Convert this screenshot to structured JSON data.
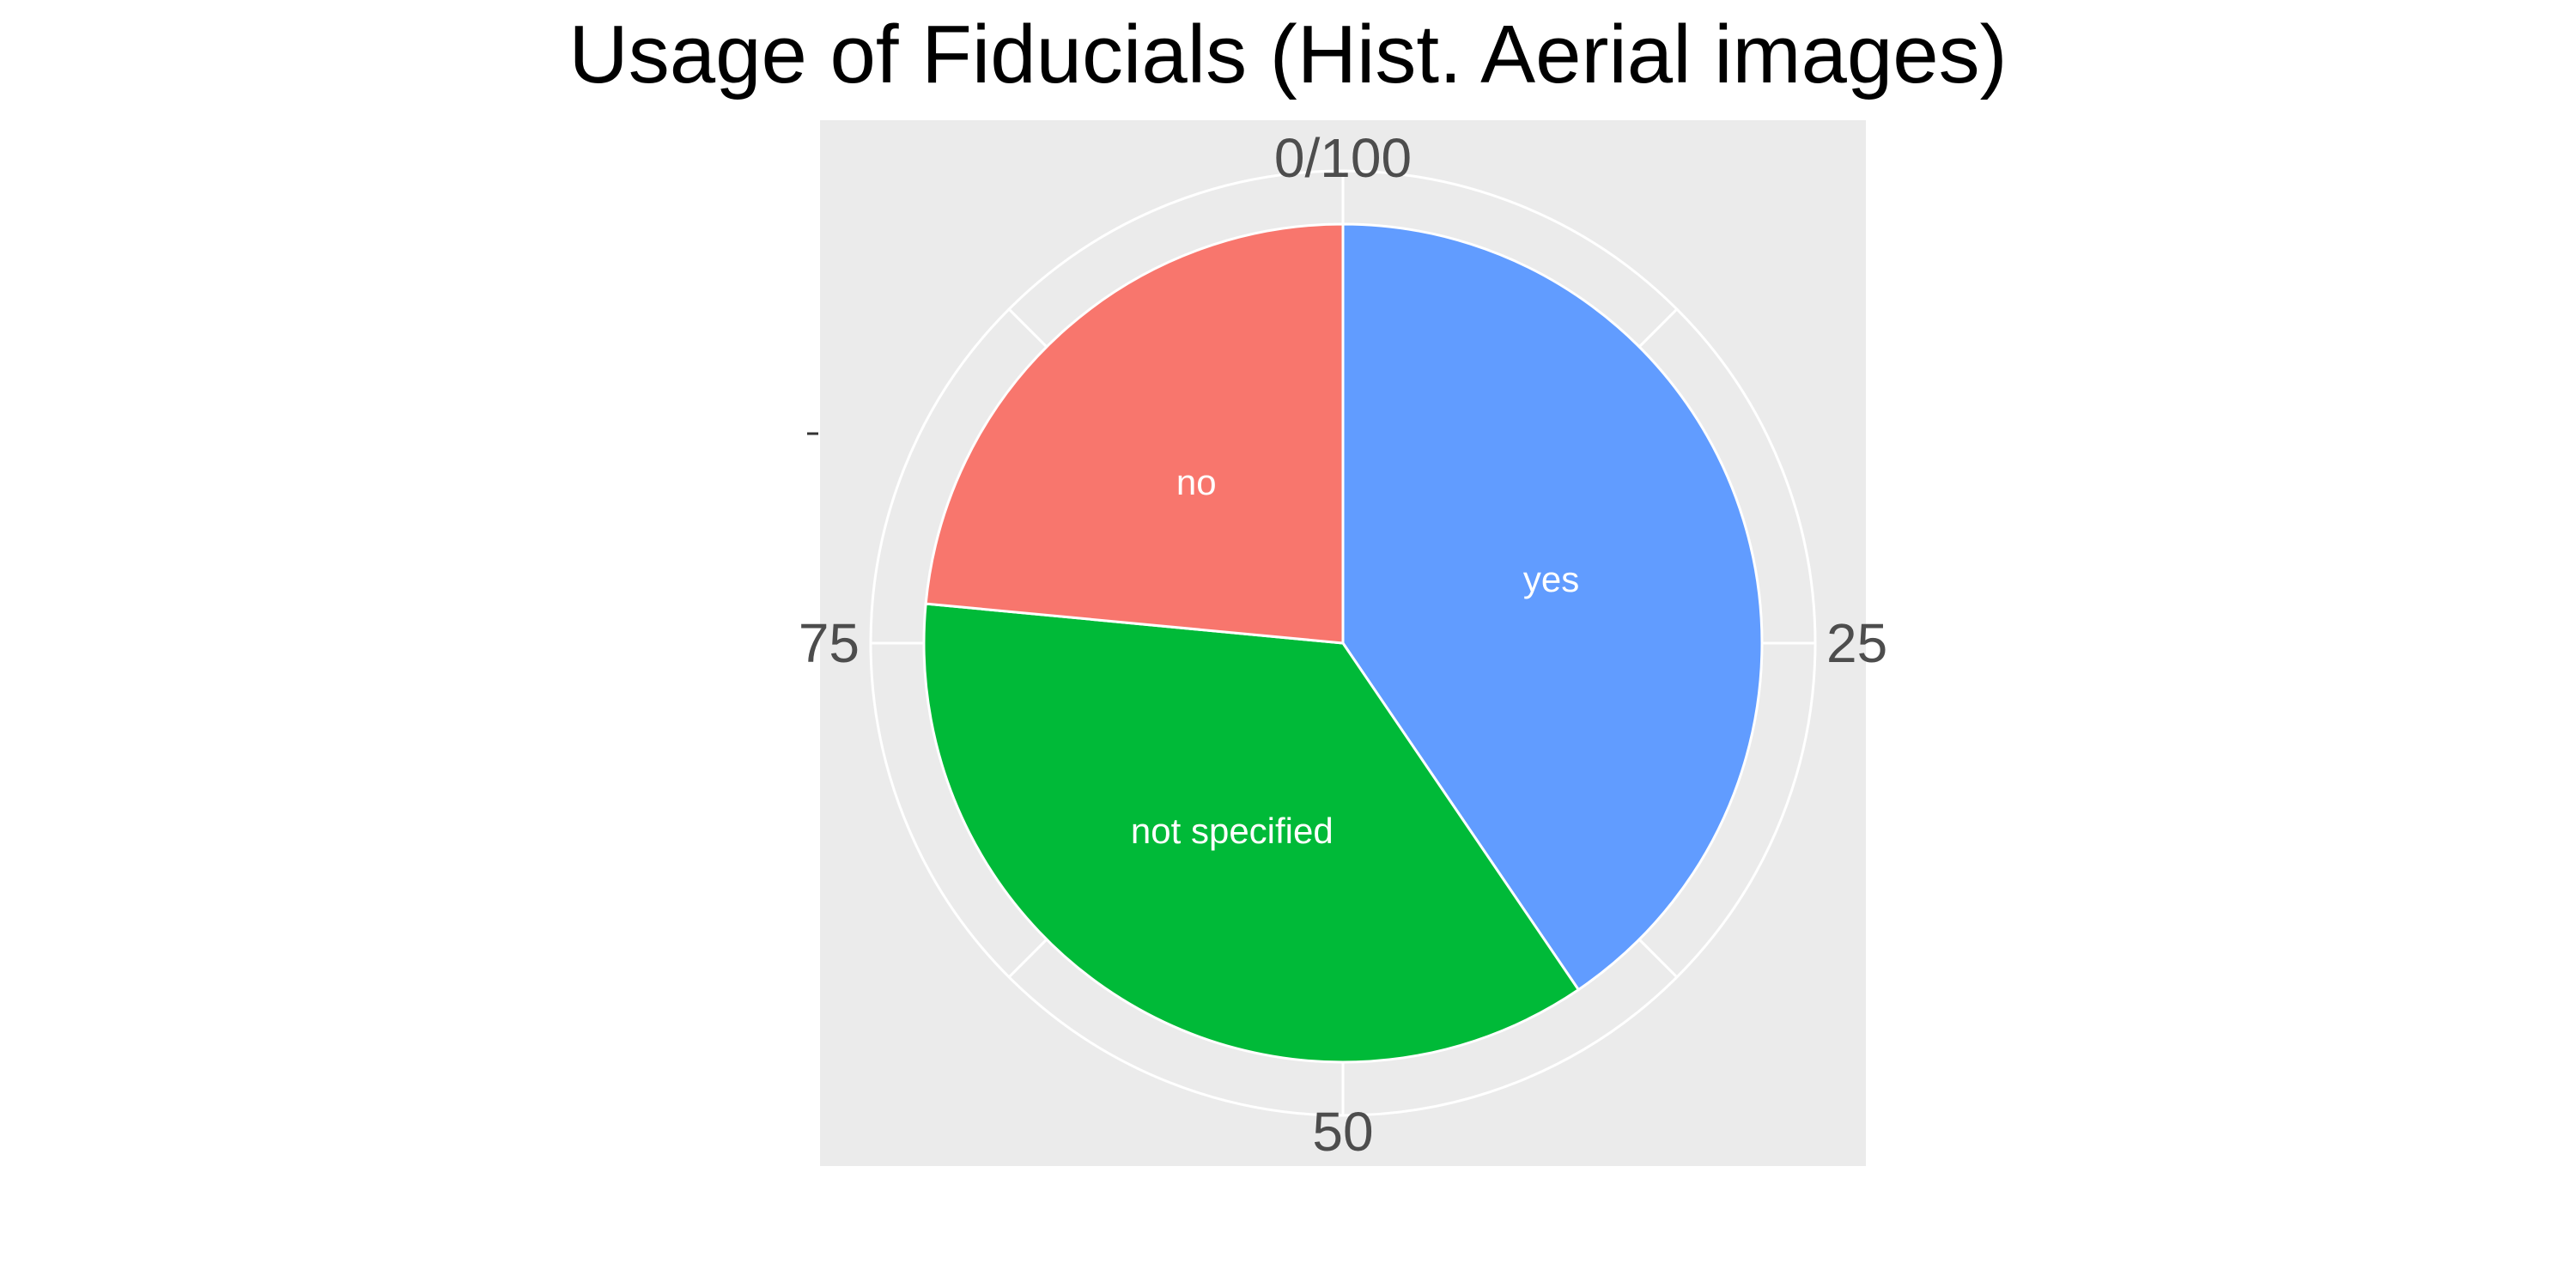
{
  "chart_data": {
    "type": "pie",
    "title": "Usage of Fiducials (Hist. Aerial images)",
    "categories": [
      "yes",
      "not specified",
      "no"
    ],
    "values": [
      40.5,
      36.0,
      23.5
    ],
    "colors": {
      "yes": "#619CFF",
      "not specified": "#00BA38",
      "no": "#F8766D"
    },
    "order_clockwise_from_top": [
      "yes",
      "not specified",
      "no"
    ],
    "angular_axis": {
      "range": [
        0,
        100
      ],
      "ticks": [
        {
          "value": 0,
          "label": "0/100"
        },
        {
          "value": 25,
          "label": "25"
        },
        {
          "value": 50,
          "label": "50"
        },
        {
          "value": 75,
          "label": "75"
        }
      ]
    },
    "panel_background": "#EBEBEB",
    "grid": true,
    "legend": "none"
  }
}
